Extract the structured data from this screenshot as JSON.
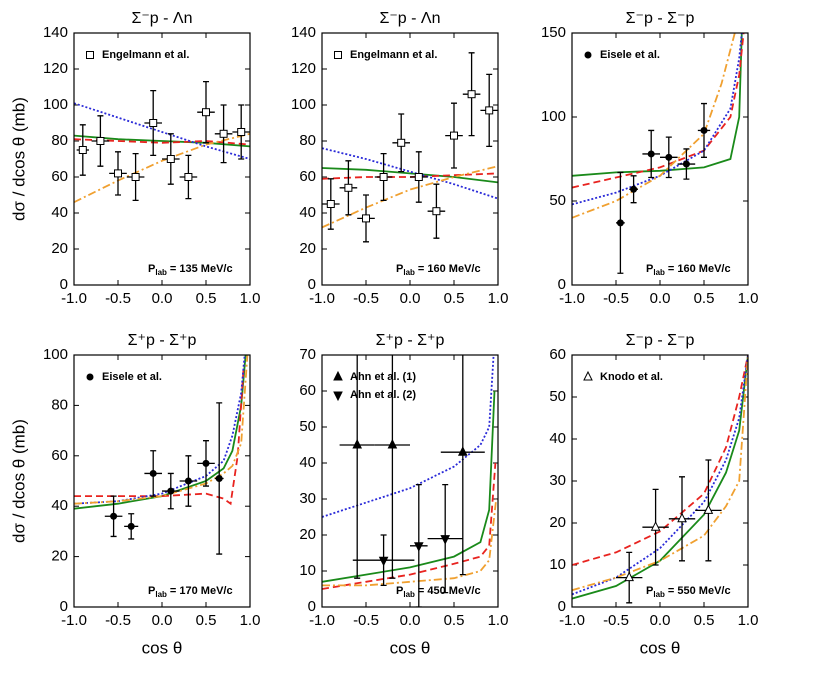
{
  "chart_data": [
    {
      "type": "scatter",
      "title": "Σ⁻p - Λn",
      "ylabel": "dσ / dcos θ (mb)",
      "xlim": [
        -1,
        1
      ],
      "xticks": [
        {
          "value": -1,
          "label": "-1.0"
        },
        {
          "value": -0.5,
          "label": "-0.5"
        },
        {
          "value": 0,
          "label": "0.0"
        },
        {
          "value": 0.5,
          "label": "0.5"
        },
        {
          "value": 1,
          "label": "1.0"
        }
      ],
      "ylim": [
        0,
        140
      ],
      "yticks": [
        0,
        20,
        40,
        60,
        80,
        100,
        120,
        140
      ],
      "annotation": {
        "main": "P",
        "sub": "lab",
        "rest": "= 135 MeV/c"
      },
      "points": [
        {
          "name": "Engelmann et al.",
          "marker": "open-square",
          "x": [
            -0.9,
            -0.7,
            -0.5,
            -0.3,
            -0.1,
            0.1,
            0.3,
            0.5,
            0.7,
            0.9
          ],
          "values": [
            75,
            80,
            62,
            60,
            90,
            70,
            60,
            96,
            84,
            85
          ],
          "xerr": [
            0.07,
            0.1,
            0.1,
            0.1,
            0.1,
            0.1,
            0.1,
            0.1,
            0.1,
            0.1
          ],
          "yerr": [
            14,
            14,
            12,
            13,
            18,
            14,
            12,
            17,
            16,
            15
          ]
        }
      ],
      "curves": [
        {
          "color": "#1a8a1a",
          "style": "solid",
          "x": [
            -1,
            -0.5,
            0,
            0.5,
            1
          ],
          "values": [
            83,
            81,
            80,
            79,
            77
          ]
        },
        {
          "color": "#e8231f",
          "style": "dashed",
          "x": [
            -1,
            -0.5,
            0,
            0.5,
            1
          ],
          "values": [
            81,
            80,
            79,
            80,
            78
          ]
        },
        {
          "color": "#2a2ad8",
          "style": "dotted",
          "x": [
            -1,
            -0.5,
            0,
            0.5,
            1
          ],
          "values": [
            101,
            93,
            85,
            77,
            70
          ]
        },
        {
          "color": "#f0a030",
          "style": "dashdot",
          "x": [
            -1,
            -0.5,
            0,
            0.5,
            1
          ],
          "values": [
            46,
            58,
            69,
            78,
            84
          ]
        }
      ]
    },
    {
      "type": "scatter",
      "title": "Σ⁻p - Λn",
      "xlim": [
        -1,
        1
      ],
      "xticks": [
        {
          "value": -1,
          "label": "-1.0"
        },
        {
          "value": -0.5,
          "label": "-0.5"
        },
        {
          "value": 0,
          "label": "0.0"
        },
        {
          "value": 0.5,
          "label": "0.5"
        },
        {
          "value": 1,
          "label": "1.0"
        }
      ],
      "ylim": [
        0,
        140
      ],
      "yticks": [
        0,
        20,
        40,
        60,
        80,
        100,
        120,
        140
      ],
      "annotation": {
        "main": "P",
        "sub": "lab",
        "rest": "= 160 MeV/c"
      },
      "points": [
        {
          "name": "Engelmann et al.",
          "marker": "open-square",
          "x": [
            -0.9,
            -0.7,
            -0.5,
            -0.3,
            -0.1,
            0.1,
            0.3,
            0.5,
            0.7,
            0.9
          ],
          "values": [
            45,
            54,
            37,
            60,
            79,
            60,
            41,
            83,
            106,
            97
          ],
          "xerr": [
            0.1,
            0.1,
            0.1,
            0.1,
            0.1,
            0.1,
            0.1,
            0.1,
            0.1,
            0.1
          ],
          "yerr": [
            14,
            15,
            13,
            13,
            16,
            14,
            15,
            18,
            23,
            20
          ]
        }
      ],
      "curves": [
        {
          "color": "#1a8a1a",
          "style": "solid",
          "x": [
            -1,
            -0.5,
            0,
            0.5,
            1
          ],
          "values": [
            65,
            64,
            62,
            60,
            57
          ]
        },
        {
          "color": "#e8231f",
          "style": "dashed",
          "x": [
            -1,
            -0.5,
            0,
            0.5,
            1
          ],
          "values": [
            59,
            60,
            60,
            61,
            62
          ]
        },
        {
          "color": "#2a2ad8",
          "style": "dotted",
          "x": [
            -1,
            -0.5,
            0,
            0.5,
            1
          ],
          "values": [
            76,
            70,
            63,
            56,
            48
          ]
        },
        {
          "color": "#f0a030",
          "style": "dashdot",
          "x": [
            -1,
            -0.5,
            0,
            0.5,
            1
          ],
          "values": [
            32,
            43,
            53,
            60,
            66
          ]
        }
      ]
    },
    {
      "type": "scatter",
      "title": "Σ⁻p - Σ⁻p",
      "xlim": [
        -1,
        1
      ],
      "xticks": [
        {
          "value": -1,
          "label": "-1.0"
        },
        {
          "value": -0.5,
          "label": "-0.5"
        },
        {
          "value": 0,
          "label": "0.0"
        },
        {
          "value": 0.5,
          "label": "0.5"
        },
        {
          "value": 1,
          "label": "1.0"
        }
      ],
      "ylim": [
        0,
        150
      ],
      "yticks": [
        0,
        50,
        100,
        150
      ],
      "annotation": {
        "main": "P",
        "sub": "lab",
        "rest": "= 160 MeV/c"
      },
      "points": [
        {
          "name": "Eisele et al.",
          "marker": "filled-circle",
          "x": [
            -0.45,
            -0.3,
            -0.1,
            0.1,
            0.3,
            0.5
          ],
          "values": [
            37,
            57,
            78,
            76,
            72,
            92
          ],
          "xerr": [
            0.05,
            0.05,
            0.1,
            0.1,
            0.1,
            0.07
          ],
          "yerr": [
            30,
            8,
            14,
            12,
            9,
            16
          ]
        }
      ],
      "curves": [
        {
          "color": "#1a8a1a",
          "style": "solid",
          "x": [
            -1,
            -0.5,
            0,
            0.5,
            0.8,
            0.9,
            0.93
          ],
          "values": [
            65,
            67,
            68,
            70,
            75,
            100,
            150
          ]
        },
        {
          "color": "#e8231f",
          "style": "dashed",
          "x": [
            -1,
            -0.5,
            0,
            0.5,
            0.8,
            0.9,
            0.95
          ],
          "values": [
            58,
            64,
            70,
            80,
            100,
            125,
            150
          ]
        },
        {
          "color": "#2a2ad8",
          "style": "dotted",
          "x": [
            -1,
            -0.5,
            0,
            0.5,
            0.8,
            0.9,
            0.93
          ],
          "values": [
            48,
            55,
            65,
            80,
            105,
            135,
            150
          ]
        },
        {
          "color": "#f0a030",
          "style": "dashdot",
          "x": [
            -1,
            -0.5,
            0,
            0.5,
            0.7,
            0.85
          ],
          "values": [
            40,
            50,
            65,
            90,
            120,
            150
          ]
        }
      ]
    },
    {
      "type": "scatter",
      "title": "Σ⁺p - Σ⁺p",
      "ylabel": "dσ / dcos θ (mb)",
      "xlabel": "cos θ",
      "xlim": [
        -1,
        1
      ],
      "xticks": [
        {
          "value": -1,
          "label": "-1.0"
        },
        {
          "value": -0.5,
          "label": "-0.5"
        },
        {
          "value": 0,
          "label": "0.0"
        },
        {
          "value": 0.5,
          "label": "0.5"
        },
        {
          "value": 1,
          "label": "1.0"
        }
      ],
      "ylim": [
        0,
        100
      ],
      "yticks": [
        0,
        20,
        40,
        60,
        80,
        100
      ],
      "annotation": {
        "main": "P",
        "sub": "lab",
        "rest": "= 170 MeV/c"
      },
      "points": [
        {
          "name": "Eisele et al.",
          "marker": "filled-circle",
          "x": [
            -0.55,
            -0.35,
            -0.1,
            0.1,
            0.3,
            0.5,
            0.65
          ],
          "values": [
            36,
            32,
            53,
            46,
            50,
            57,
            51
          ],
          "xerr": [
            0.1,
            0.08,
            0.1,
            0.1,
            0.1,
            0.1,
            0.05
          ],
          "yerr": [
            8,
            5,
            9,
            7,
            10,
            9,
            30
          ]
        }
      ],
      "curves": [
        {
          "color": "#1a8a1a",
          "style": "solid",
          "x": [
            -1,
            -0.5,
            0,
            0.5,
            0.7,
            0.8,
            0.9,
            0.95
          ],
          "values": [
            39,
            41,
            44,
            50,
            55,
            62,
            80,
            100
          ]
        },
        {
          "color": "#e8231f",
          "style": "dashed",
          "x": [
            -1,
            -0.5,
            0,
            0.5,
            0.7,
            0.78,
            0.86,
            0.93
          ],
          "values": [
            44,
            44,
            44,
            45,
            43,
            41,
            60,
            96
          ]
        },
        {
          "color": "#2a2ad8",
          "style": "dotted",
          "x": [
            -1,
            -0.5,
            0,
            0.5,
            0.7,
            0.8,
            0.9,
            0.94
          ],
          "values": [
            41,
            42,
            45,
            52,
            58,
            68,
            85,
            100
          ]
        },
        {
          "color": "#f0a030",
          "style": "dashdot",
          "x": [
            -1,
            -0.5,
            0,
            0.5,
            0.7,
            0.8,
            0.9,
            0.97
          ],
          "values": [
            41,
            42,
            44,
            49,
            53,
            56,
            65,
            100
          ]
        }
      ]
    },
    {
      "type": "scatter",
      "title": "Σ⁺p - Σ⁺p",
      "xlabel": "cos θ",
      "xlim": [
        -1,
        1
      ],
      "xticks": [
        {
          "value": -1,
          "label": "-1.0"
        },
        {
          "value": -0.5,
          "label": "-0.5"
        },
        {
          "value": 0,
          "label": "0.0"
        },
        {
          "value": 0.5,
          "label": "0.5"
        },
        {
          "value": 1,
          "label": "1.0"
        }
      ],
      "ylim": [
        0,
        70
      ],
      "yticks": [
        0,
        10,
        20,
        30,
        40,
        50,
        60,
        70
      ],
      "annotation": {
        "main": "P",
        "sub": "lab",
        "rest": "= 450 MeV/c"
      },
      "points": [
        {
          "name": "Ahn et al. (1)",
          "marker": "up-triangle",
          "x": [
            -0.6,
            -0.2,
            0.6
          ],
          "values": [
            45,
            45,
            43
          ],
          "xerr": [
            0.2,
            0.2,
            0.25
          ],
          "yerr": [
            37,
            37,
            34
          ]
        },
        {
          "name": "Ahn et al. (2)",
          "marker": "down-triangle",
          "x": [
            -0.3,
            0.1,
            0.4
          ],
          "values": [
            13,
            17,
            19
          ],
          "xerr": [
            0.35,
            0.1,
            0.2
          ],
          "yerr": [
            7,
            17,
            15
          ]
        }
      ],
      "curves": [
        {
          "color": "#1a8a1a",
          "style": "solid",
          "x": [
            -1,
            -0.5,
            0,
            0.5,
            0.8,
            0.9,
            0.96
          ],
          "values": [
            7,
            9,
            11,
            14,
            18,
            27,
            60
          ]
        },
        {
          "color": "#e8231f",
          "style": "dashed",
          "x": [
            -1,
            -0.5,
            0,
            0.5,
            0.8,
            0.9,
            0.97
          ],
          "values": [
            5,
            7,
            9,
            12,
            14,
            17,
            40
          ]
        },
        {
          "color": "#2a2ad8",
          "style": "dotted",
          "x": [
            -1,
            -0.5,
            0,
            0.5,
            0.8,
            0.9,
            0.95
          ],
          "values": [
            25,
            29,
            33,
            39,
            45,
            50,
            70
          ]
        },
        {
          "color": "#f0a030",
          "style": "dashdot",
          "x": [
            -1,
            -0.5,
            0,
            0.5,
            0.8,
            0.9,
            0.98
          ],
          "values": [
            6,
            6,
            7,
            8,
            10,
            13,
            30
          ]
        }
      ]
    },
    {
      "type": "scatter",
      "title": "Σ⁻p - Σ⁻p",
      "xlabel": "cos θ",
      "xlim": [
        -1,
        1
      ],
      "xticks": [
        {
          "value": -1,
          "label": "-1.0"
        },
        {
          "value": -0.5,
          "label": "-0.5"
        },
        {
          "value": 0,
          "label": "0.0"
        },
        {
          "value": 0.5,
          "label": "0.5"
        },
        {
          "value": 1,
          "label": "1.0"
        }
      ],
      "ylim": [
        0,
        60
      ],
      "yticks": [
        0,
        10,
        20,
        30,
        40,
        50,
        60
      ],
      "annotation": {
        "main": "P",
        "sub": "lab",
        "rest": "= 550 MeV/c"
      },
      "points": [
        {
          "name": "Knodo et al.",
          "marker": "open-triangle",
          "x": [
            -0.35,
            -0.05,
            0.25,
            0.55
          ],
          "values": [
            7,
            19,
            21,
            23
          ],
          "xerr": [
            0.15,
            0.15,
            0.15,
            0.15
          ],
          "yerr": [
            6,
            9,
            10,
            12
          ]
        }
      ],
      "curves": [
        {
          "color": "#1a8a1a",
          "style": "solid",
          "x": [
            -1,
            -0.5,
            0,
            0.5,
            0.75,
            0.9,
            1
          ],
          "values": [
            2,
            5,
            11,
            22,
            32,
            42,
            60
          ]
        },
        {
          "color": "#e8231f",
          "style": "dashed",
          "x": [
            -1,
            -0.5,
            0,
            0.5,
            0.75,
            0.9,
            1
          ],
          "values": [
            10,
            13,
            18,
            27,
            38,
            50,
            60
          ]
        },
        {
          "color": "#2a2ad8",
          "style": "dotted",
          "x": [
            -1,
            -0.5,
            0,
            0.5,
            0.75,
            0.9,
            1
          ],
          "values": [
            3,
            7,
            14,
            25,
            35,
            45,
            60
          ]
        },
        {
          "color": "#f0a030",
          "style": "dashdot",
          "x": [
            -1,
            -0.5,
            0,
            0.5,
            0.75,
            0.9,
            1
          ],
          "values": [
            4,
            7,
            11,
            17,
            24,
            30,
            60
          ]
        }
      ]
    }
  ]
}
